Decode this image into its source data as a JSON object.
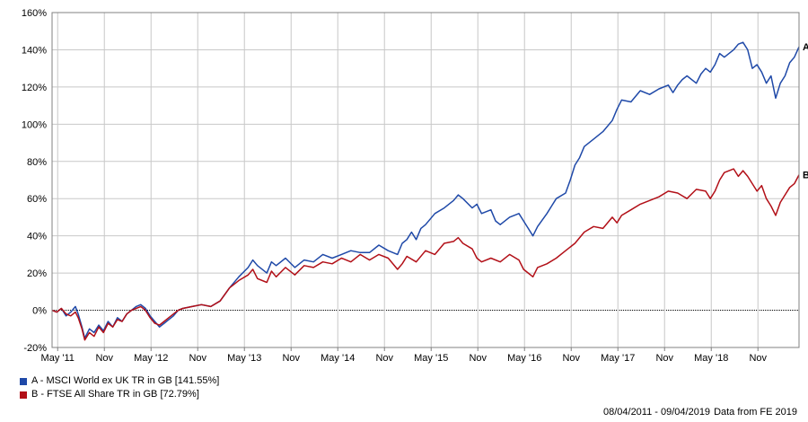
{
  "chart_data": {
    "type": "line",
    "x_ticks": [
      "May '11",
      "Nov",
      "May '12",
      "Nov",
      "May '13",
      "Nov",
      "May '14",
      "Nov",
      "May '15",
      "Nov",
      "May '16",
      "Nov",
      "May '17",
      "Nov",
      "May '18",
      "Nov"
    ],
    "y_ticks": [
      "160%",
      "140%",
      "120%",
      "100%",
      "80%",
      "60%",
      "40%",
      "20%",
      "0%",
      "-20%"
    ],
    "ylim": [
      -20,
      160
    ],
    "x_unit": "years since 08/04/2011",
    "xlim": [
      0,
      8.0
    ],
    "grid": true,
    "series": [
      {
        "name": "A - MSCI World ex UK TR in GB [141.55%]",
        "end_label": "A",
        "color": "#1f49a8",
        "points": [
          [
            0,
            0
          ],
          [
            0.05,
            -1
          ],
          [
            0.1,
            1
          ],
          [
            0.15,
            -3
          ],
          [
            0.2,
            -1
          ],
          [
            0.25,
            2
          ],
          [
            0.28,
            -2
          ],
          [
            0.32,
            -9
          ],
          [
            0.35,
            -15
          ],
          [
            0.4,
            -10
          ],
          [
            0.45,
            -12
          ],
          [
            0.5,
            -8
          ],
          [
            0.55,
            -11
          ],
          [
            0.6,
            -6
          ],
          [
            0.65,
            -9
          ],
          [
            0.7,
            -4
          ],
          [
            0.75,
            -6
          ],
          [
            0.8,
            -2
          ],
          [
            0.85,
            0
          ],
          [
            0.9,
            2
          ],
          [
            0.95,
            3
          ],
          [
            1.0,
            1
          ],
          [
            1.05,
            -3
          ],
          [
            1.1,
            -6
          ],
          [
            1.15,
            -9
          ],
          [
            1.2,
            -7
          ],
          [
            1.25,
            -5
          ],
          [
            1.3,
            -3
          ],
          [
            1.35,
            0
          ],
          [
            1.4,
            1
          ],
          [
            1.5,
            2
          ],
          [
            1.6,
            3
          ],
          [
            1.7,
            2
          ],
          [
            1.8,
            5
          ],
          [
            1.9,
            12
          ],
          [
            2.0,
            18
          ],
          [
            2.1,
            23
          ],
          [
            2.15,
            27
          ],
          [
            2.2,
            24
          ],
          [
            2.3,
            20
          ],
          [
            2.35,
            26
          ],
          [
            2.4,
            24
          ],
          [
            2.5,
            28
          ],
          [
            2.6,
            23
          ],
          [
            2.7,
            27
          ],
          [
            2.8,
            26
          ],
          [
            2.9,
            30
          ],
          [
            3.0,
            28
          ],
          [
            3.1,
            30
          ],
          [
            3.2,
            32
          ],
          [
            3.3,
            31
          ],
          [
            3.4,
            31
          ],
          [
            3.5,
            35
          ],
          [
            3.6,
            32
          ],
          [
            3.7,
            30
          ],
          [
            3.75,
            36
          ],
          [
            3.8,
            38
          ],
          [
            3.85,
            42
          ],
          [
            3.9,
            38
          ],
          [
            3.95,
            44
          ],
          [
            4.0,
            46
          ],
          [
            4.1,
            52
          ],
          [
            4.2,
            55
          ],
          [
            4.3,
            59
          ],
          [
            4.35,
            62
          ],
          [
            4.4,
            60
          ],
          [
            4.5,
            55
          ],
          [
            4.55,
            57
          ],
          [
            4.6,
            52
          ],
          [
            4.7,
            54
          ],
          [
            4.75,
            48
          ],
          [
            4.8,
            46
          ],
          [
            4.9,
            50
          ],
          [
            5.0,
            52
          ],
          [
            5.05,
            48
          ],
          [
            5.1,
            44
          ],
          [
            5.15,
            40
          ],
          [
            5.2,
            45
          ],
          [
            5.3,
            52
          ],
          [
            5.35,
            56
          ],
          [
            5.4,
            60
          ],
          [
            5.5,
            63
          ],
          [
            5.55,
            70
          ],
          [
            5.6,
            78
          ],
          [
            5.65,
            82
          ],
          [
            5.7,
            88
          ],
          [
            5.8,
            92
          ],
          [
            5.9,
            96
          ],
          [
            6.0,
            102
          ],
          [
            6.05,
            108
          ],
          [
            6.1,
            113
          ],
          [
            6.2,
            112
          ],
          [
            6.3,
            118
          ],
          [
            6.4,
            116
          ],
          [
            6.5,
            119
          ],
          [
            6.6,
            121
          ],
          [
            6.65,
            117
          ],
          [
            6.7,
            121
          ],
          [
            6.75,
            124
          ],
          [
            6.8,
            126
          ],
          [
            6.9,
            122
          ],
          [
            6.95,
            127
          ],
          [
            7.0,
            130
          ],
          [
            7.05,
            128
          ],
          [
            7.1,
            132
          ],
          [
            7.15,
            138
          ],
          [
            7.2,
            136
          ],
          [
            7.3,
            140
          ],
          [
            7.35,
            143
          ],
          [
            7.4,
            144
          ],
          [
            7.45,
            140
          ],
          [
            7.5,
            130
          ],
          [
            7.55,
            132
          ],
          [
            7.6,
            128
          ],
          [
            7.65,
            122
          ],
          [
            7.7,
            126
          ],
          [
            7.75,
            114
          ],
          [
            7.8,
            122
          ],
          [
            7.85,
            126
          ],
          [
            7.9,
            133
          ],
          [
            7.95,
            136
          ],
          [
            8.0,
            141.55
          ]
        ]
      },
      {
        "name": "B - FTSE All Share TR in GB [72.79%]",
        "end_label": "B",
        "color": "#b20f17",
        "points": [
          [
            0,
            0
          ],
          [
            0.05,
            -1
          ],
          [
            0.1,
            1
          ],
          [
            0.15,
            -2
          ],
          [
            0.2,
            -3
          ],
          [
            0.25,
            -1
          ],
          [
            0.28,
            -4
          ],
          [
            0.32,
            -10
          ],
          [
            0.35,
            -16
          ],
          [
            0.4,
            -12
          ],
          [
            0.45,
            -14
          ],
          [
            0.5,
            -9
          ],
          [
            0.55,
            -12
          ],
          [
            0.6,
            -7
          ],
          [
            0.65,
            -9
          ],
          [
            0.7,
            -5
          ],
          [
            0.75,
            -6
          ],
          [
            0.8,
            -2
          ],
          [
            0.85,
            0
          ],
          [
            0.9,
            1
          ],
          [
            0.95,
            2
          ],
          [
            1.0,
            0
          ],
          [
            1.05,
            -4
          ],
          [
            1.1,
            -7
          ],
          [
            1.15,
            -8
          ],
          [
            1.2,
            -6
          ],
          [
            1.25,
            -4
          ],
          [
            1.3,
            -2
          ],
          [
            1.35,
            0
          ],
          [
            1.4,
            1
          ],
          [
            1.5,
            2
          ],
          [
            1.6,
            3
          ],
          [
            1.7,
            2
          ],
          [
            1.8,
            5
          ],
          [
            1.9,
            12
          ],
          [
            2.0,
            16
          ],
          [
            2.1,
            19
          ],
          [
            2.15,
            22
          ],
          [
            2.2,
            17
          ],
          [
            2.3,
            15
          ],
          [
            2.35,
            21
          ],
          [
            2.4,
            18
          ],
          [
            2.5,
            23
          ],
          [
            2.6,
            19
          ],
          [
            2.7,
            24
          ],
          [
            2.8,
            23
          ],
          [
            2.9,
            26
          ],
          [
            3.0,
            25
          ],
          [
            3.1,
            28
          ],
          [
            3.2,
            26
          ],
          [
            3.3,
            30
          ],
          [
            3.4,
            27
          ],
          [
            3.5,
            30
          ],
          [
            3.6,
            28
          ],
          [
            3.7,
            22
          ],
          [
            3.75,
            25
          ],
          [
            3.8,
            29
          ],
          [
            3.9,
            26
          ],
          [
            4.0,
            32
          ],
          [
            4.1,
            30
          ],
          [
            4.2,
            36
          ],
          [
            4.3,
            37
          ],
          [
            4.35,
            39
          ],
          [
            4.4,
            36
          ],
          [
            4.5,
            33
          ],
          [
            4.55,
            28
          ],
          [
            4.6,
            26
          ],
          [
            4.7,
            28
          ],
          [
            4.8,
            26
          ],
          [
            4.9,
            30
          ],
          [
            5.0,
            27
          ],
          [
            5.05,
            22
          ],
          [
            5.1,
            20
          ],
          [
            5.15,
            18
          ],
          [
            5.2,
            23
          ],
          [
            5.3,
            25
          ],
          [
            5.4,
            28
          ],
          [
            5.5,
            32
          ],
          [
            5.6,
            36
          ],
          [
            5.7,
            42
          ],
          [
            5.8,
            45
          ],
          [
            5.9,
            44
          ],
          [
            6.0,
            50
          ],
          [
            6.05,
            47
          ],
          [
            6.1,
            51
          ],
          [
            6.2,
            54
          ],
          [
            6.3,
            57
          ],
          [
            6.4,
            59
          ],
          [
            6.5,
            61
          ],
          [
            6.6,
            64
          ],
          [
            6.7,
            63
          ],
          [
            6.8,
            60
          ],
          [
            6.9,
            65
          ],
          [
            7.0,
            64
          ],
          [
            7.05,
            60
          ],
          [
            7.1,
            64
          ],
          [
            7.15,
            70
          ],
          [
            7.2,
            74
          ],
          [
            7.3,
            76
          ],
          [
            7.35,
            72
          ],
          [
            7.4,
            75
          ],
          [
            7.45,
            72
          ],
          [
            7.5,
            68
          ],
          [
            7.55,
            64
          ],
          [
            7.6,
            67
          ],
          [
            7.65,
            60
          ],
          [
            7.7,
            56
          ],
          [
            7.75,
            51
          ],
          [
            7.8,
            58
          ],
          [
            7.85,
            62
          ],
          [
            7.9,
            66
          ],
          [
            7.95,
            68
          ],
          [
            8.0,
            72.79
          ]
        ]
      }
    ]
  },
  "legend": {
    "a": {
      "label": "A - MSCI World ex UK TR in GB [141.55%]",
      "color": "#1f49a8"
    },
    "b": {
      "label": "B - FTSE All Share TR in GB [72.79%]",
      "color": "#b20f17"
    }
  },
  "footer": {
    "date_range": "08/04/2011 - 09/04/2019",
    "source": "Data from FE 2019"
  }
}
